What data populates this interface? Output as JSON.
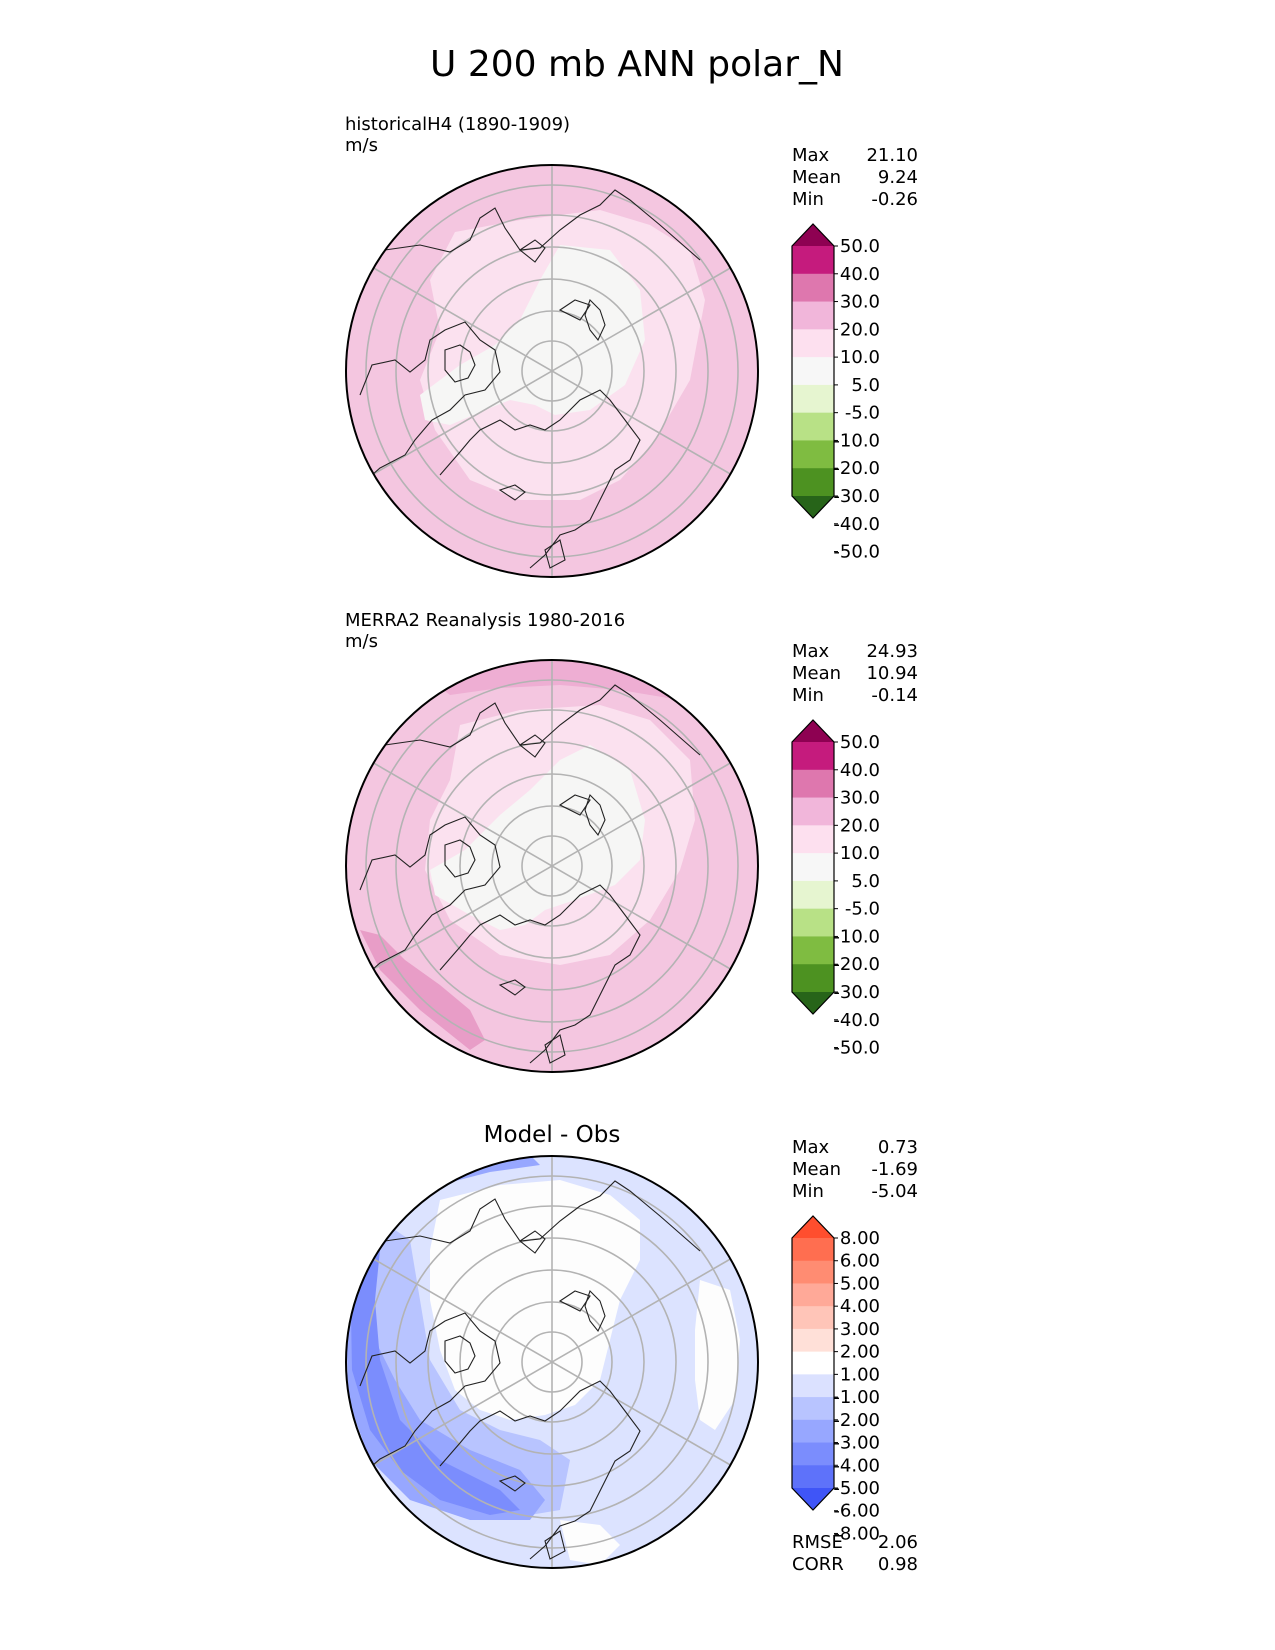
{
  "figure_title": "U 200 mb ANN polar_N",
  "panels": [
    {
      "id": "test",
      "title_line1": "historicalH4 (1890-1909)",
      "title_line2": "m/s",
      "stats": [
        {
          "label": "Max",
          "value": "21.10"
        },
        {
          "label": "Mean",
          "value": "9.24"
        },
        {
          "label": "Min",
          "value": "-0.26"
        }
      ],
      "colorbar": {
        "labels": [
          "50.0",
          "40.0",
          "30.0",
          "20.0",
          "10.0",
          "5.0",
          "-5.0",
          "-10.0",
          "-20.0",
          "-30.0",
          "-40.0",
          "-50.0"
        ],
        "colors": [
          "#8e0152",
          "#c51b7d",
          "#de77ae",
          "#f1b6da",
          "#fde0ef",
          "#f7f7f7",
          "#e6f5d0",
          "#b8e186",
          "#7fbc41",
          "#4d9221",
          "#276419"
        ]
      },
      "base_fill": "#f4c6e0"
    },
    {
      "id": "ref",
      "title_line1": "MERRA2 Reanalysis 1980-2016",
      "title_line2": "m/s",
      "stats": [
        {
          "label": "Max",
          "value": "24.93"
        },
        {
          "label": "Mean",
          "value": "10.94"
        },
        {
          "label": "Min",
          "value": "-0.14"
        }
      ],
      "colorbar": {
        "labels": [
          "50.0",
          "40.0",
          "30.0",
          "20.0",
          "10.0",
          "5.0",
          "-5.0",
          "-10.0",
          "-20.0",
          "-30.0",
          "-40.0",
          "-50.0"
        ],
        "colors": [
          "#8e0152",
          "#c51b7d",
          "#de77ae",
          "#f1b6da",
          "#fde0ef",
          "#f7f7f7",
          "#e6f5d0",
          "#b8e186",
          "#7fbc41",
          "#4d9221",
          "#276419"
        ]
      },
      "base_fill": "#f4c6e0"
    },
    {
      "id": "diff",
      "title_center": "Model - Obs",
      "stats": [
        {
          "label": "Max",
          "value": "0.73"
        },
        {
          "label": "Mean",
          "value": "-1.69"
        },
        {
          "label": "Min",
          "value": "-5.04"
        }
      ],
      "colorbar": {
        "labels": [
          "8.00",
          "6.00",
          "5.00",
          "4.00",
          "3.00",
          "2.00",
          "1.00",
          "-1.00",
          "-2.00",
          "-3.00",
          "-4.00",
          "-5.00",
          "-6.00",
          "-8.00"
        ],
        "colors": [
          "#ff4e2e",
          "#ff6e50",
          "#ff8c72",
          "#ffa998",
          "#ffc5b8",
          "#ffe0d8",
          "#ffffff",
          "#dbe1ff",
          "#b8c4ff",
          "#97a7ff",
          "#7b8dfd",
          "#5e72fa",
          "#3f55f7"
        ]
      },
      "base_fill": "#dce3ff",
      "extra_stats": [
        {
          "label": "RMSE",
          "value": "2.06"
        },
        {
          "label": "CORR",
          "value": "0.98"
        }
      ]
    }
  ]
}
